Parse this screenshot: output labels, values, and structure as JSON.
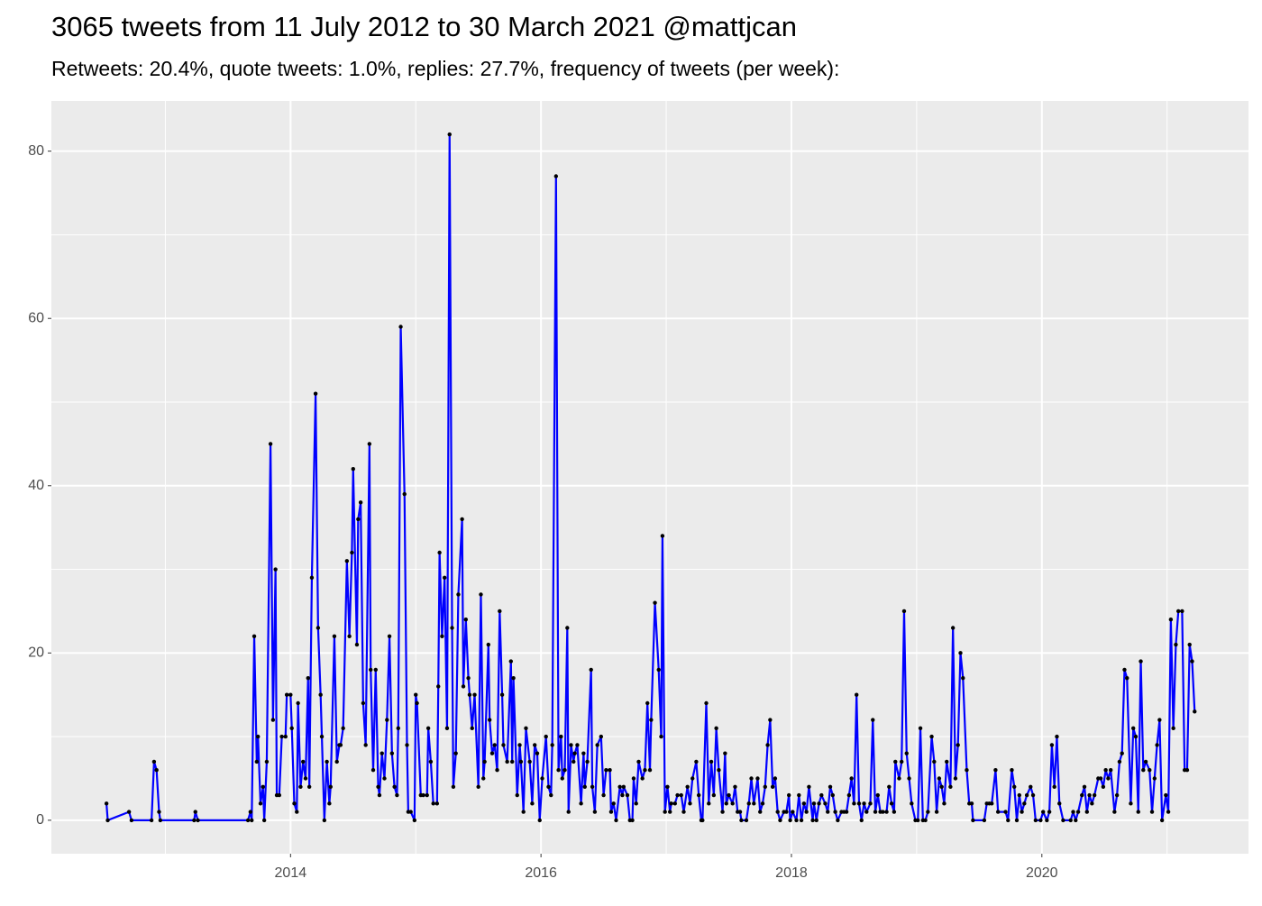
{
  "chart_data": {
    "type": "line",
    "title": "3065 tweets from 11 July 2012 to 30 March 2021 @mattjcan",
    "subtitle": "Retweets: 20.4%, quote tweets: 1.0%, replies: 27.7%, frequency of tweets (per week):",
    "color": "#0000ff",
    "point_color": "#000000",
    "grid": true,
    "xlim": [
      2012.09,
      2021.65
    ],
    "xticks": [
      2014,
      2016,
      2018,
      2020
    ],
    "ylim": [
      -4,
      86
    ],
    "yticks": [
      0,
      20,
      40,
      60,
      80
    ],
    "x": [
      2012.53,
      2012.54,
      2012.71,
      2012.73,
      2012.89,
      2012.91,
      2012.93,
      2012.95,
      2012.96,
      2013.23,
      2013.24,
      2013.26,
      2013.66,
      2013.68,
      2013.69,
      2013.71,
      2013.73,
      2013.74,
      2013.76,
      2013.78,
      2013.79,
      2013.81,
      2013.84,
      2013.86,
      2013.88,
      2013.89,
      2013.91,
      2013.93,
      2013.96,
      2013.97,
      2014.0,
      2014.01,
      2014.03,
      2014.05,
      2014.06,
      2014.08,
      2014.1,
      2014.12,
      2014.14,
      2014.15,
      2014.17,
      2014.2,
      2014.22,
      2014.24,
      2014.25,
      2014.27,
      2014.29,
      2014.31,
      2014.32,
      2014.35,
      2014.37,
      2014.39,
      2014.4,
      2014.42,
      2014.45,
      2014.47,
      2014.49,
      2014.5,
      2014.53,
      2014.54,
      2014.56,
      2014.58,
      2014.6,
      2014.63,
      2014.64,
      2014.66,
      2014.68,
      2014.7,
      2014.71,
      2014.73,
      2014.75,
      2014.77,
      2014.79,
      2014.81,
      2014.83,
      2014.85,
      2014.86,
      2014.88,
      2014.91,
      2014.93,
      2014.94,
      2014.96,
      2014.99,
      2015.0,
      2015.01,
      2015.04,
      2015.06,
      2015.09,
      2015.1,
      2015.12,
      2015.14,
      2015.17,
      2015.18,
      2015.19,
      2015.21,
      2015.23,
      2015.25,
      2015.27,
      2015.29,
      2015.3,
      2015.32,
      2015.34,
      2015.37,
      2015.38,
      2015.4,
      2015.42,
      2015.43,
      2015.45,
      2015.47,
      2015.5,
      2015.52,
      2015.54,
      2015.55,
      2015.58,
      2015.59,
      2015.61,
      2015.63,
      2015.65,
      2015.67,
      2015.69,
      2015.7,
      2015.73,
      2015.76,
      2015.77,
      2015.78,
      2015.81,
      2015.83,
      2015.84,
      2015.86,
      2015.88,
      2015.91,
      2015.93,
      2015.95,
      2015.97,
      2015.99,
      2016.01,
      2016.04,
      2016.06,
      2016.08,
      2016.09,
      2016.12,
      2016.14,
      2016.16,
      2016.17,
      2016.19,
      2016.21,
      2016.22,
      2016.24,
      2016.26,
      2016.27,
      2016.29,
      2016.32,
      2016.34,
      2016.35,
      2016.37,
      2016.4,
      2016.41,
      2016.43,
      2016.45,
      2016.48,
      2016.5,
      2016.52,
      2016.55,
      2016.56,
      2016.58,
      2016.6,
      2016.63,
      2016.65,
      2016.66,
      2016.69,
      2016.71,
      2016.73,
      2016.74,
      2016.76,
      2016.78,
      2016.81,
      2016.83,
      2016.85,
      2016.87,
      2016.88,
      2016.91,
      2016.94,
      2016.96,
      2016.97,
      2016.99,
      2017.01,
      2017.03,
      2017.04,
      2017.07,
      2017.09,
      2017.12,
      2017.14,
      2017.17,
      2017.19,
      2017.21,
      2017.24,
      2017.26,
      2017.28,
      2017.29,
      2017.32,
      2017.34,
      2017.36,
      2017.38,
      2017.4,
      2017.42,
      2017.45,
      2017.47,
      2017.48,
      2017.5,
      2017.53,
      2017.55,
      2017.57,
      2017.59,
      2017.6,
      2017.64,
      2017.66,
      2017.68,
      2017.7,
      2017.73,
      2017.75,
      2017.77,
      2017.79,
      2017.81,
      2017.83,
      2017.85,
      2017.87,
      2017.89,
      2017.91,
      2017.94,
      2017.96,
      2017.98,
      2017.99,
      2018.01,
      2018.04,
      2018.06,
      2018.08,
      2018.1,
      2018.12,
      2018.14,
      2018.17,
      2018.18,
      2018.2,
      2018.22,
      2018.24,
      2018.27,
      2018.29,
      2018.31,
      2018.33,
      2018.35,
      2018.37,
      2018.4,
      2018.42,
      2018.44,
      2018.46,
      2018.48,
      2018.5,
      2018.52,
      2018.54,
      2018.56,
      2018.58,
      2018.6,
      2018.63,
      2018.65,
      2018.67,
      2018.69,
      2018.71,
      2018.73,
      2018.76,
      2018.78,
      2018.8,
      2018.82,
      2018.83,
      2018.86,
      2018.88,
      2018.9,
      2018.92,
      2018.94,
      2018.96,
      2018.99,
      2019.01,
      2019.03,
      2019.05,
      2019.07,
      2019.09,
      2019.12,
      2019.14,
      2019.16,
      2019.18,
      2019.2,
      2019.22,
      2019.24,
      2019.27,
      2019.29,
      2019.31,
      2019.33,
      2019.35,
      2019.37,
      2019.4,
      2019.42,
      2019.44,
      2019.45,
      2019.54,
      2019.56,
      2019.58,
      2019.6,
      2019.63,
      2019.65,
      2019.71,
      2019.73,
      2019.76,
      2019.78,
      2019.8,
      2019.82,
      2019.84,
      2019.86,
      2019.88,
      2019.91,
      2019.93,
      2019.95,
      2019.99,
      2020.01,
      2020.04,
      2020.06,
      2020.08,
      2020.1,
      2020.12,
      2020.14,
      2020.17,
      2020.23,
      2020.25,
      2020.27,
      2020.29,
      2020.32,
      2020.34,
      2020.36,
      2020.38,
      2020.4,
      2020.42,
      2020.45,
      2020.47,
      2020.49,
      2020.51,
      2020.53,
      2020.55,
      2020.58,
      2020.6,
      2020.62,
      2020.64,
      2020.66,
      2020.68,
      2020.71,
      2020.73,
      2020.75,
      2020.77,
      2020.79,
      2020.81,
      2020.83,
      2020.86,
      2020.88,
      2020.9,
      2020.92,
      2020.94,
      2020.96,
      2020.99,
      2021.01,
      2021.03,
      2021.05,
      2021.07,
      2021.09,
      2021.12,
      2021.14,
      2021.16,
      2021.18,
      2021.2,
      2021.22
    ],
    "values": [
      2,
      0,
      1,
      0,
      0,
      7,
      6,
      1,
      0,
      0,
      1,
      0,
      0,
      1,
      0,
      22,
      7,
      10,
      2,
      4,
      0,
      7,
      45,
      12,
      30,
      3,
      3,
      10,
      10,
      15,
      15,
      11,
      2,
      1,
      14,
      4,
      7,
      5,
      17,
      4,
      29,
      51,
      23,
      15,
      10,
      0,
      7,
      2,
      4,
      22,
      7,
      9,
      9,
      11,
      31,
      22,
      32,
      42,
      21,
      36,
      38,
      14,
      9,
      45,
      18,
      6,
      18,
      4,
      3,
      8,
      5,
      12,
      22,
      8,
      4,
      3,
      11,
      59,
      39,
      9,
      1,
      1,
      0,
      15,
      14,
      3,
      3,
      3,
      11,
      7,
      2,
      2,
      16,
      32,
      22,
      29,
      11,
      82,
      23,
      4,
      8,
      27,
      36,
      16,
      24,
      17,
      15,
      11,
      15,
      4,
      27,
      5,
      7,
      21,
      12,
      8,
      9,
      6,
      25,
      15,
      9,
      7,
      19,
      7,
      17,
      3,
      9,
      7,
      1,
      11,
      7,
      2,
      9,
      8,
      0,
      5,
      10,
      4,
      3,
      9,
      77,
      6,
      10,
      5,
      6,
      23,
      1,
      9,
      7,
      8,
      9,
      2,
      8,
      4,
      7,
      18,
      4,
      1,
      9,
      10,
      3,
      6,
      6,
      1,
      2,
      0,
      4,
      3,
      4,
      3,
      0,
      0,
      5,
      2,
      7,
      5,
      6,
      14,
      6,
      12,
      26,
      18,
      10,
      34,
      1,
      4,
      1,
      2,
      2,
      3,
      3,
      1,
      4,
      2,
      5,
      7,
      3,
      0,
      0,
      14,
      2,
      7,
      3,
      11,
      6,
      1,
      8,
      2,
      3,
      2,
      4,
      1,
      1,
      0,
      0,
      2,
      5,
      2,
      5,
      1,
      2,
      4,
      9,
      12,
      4,
      5,
      1,
      0,
      1,
      1,
      3,
      0,
      1,
      0,
      3,
      0,
      2,
      1,
      4,
      0,
      2,
      0,
      2,
      3,
      2,
      1,
      4,
      3,
      1,
      0,
      1,
      1,
      1,
      3,
      5,
      2,
      15,
      2,
      0,
      2,
      1,
      2,
      12,
      1,
      3,
      1,
      1,
      1,
      4,
      2,
      1,
      7,
      5,
      7,
      25,
      8,
      5,
      2,
      0,
      0,
      11,
      0,
      0,
      1,
      10,
      7,
      1,
      5,
      4,
      2,
      7,
      4,
      23,
      5,
      9,
      20,
      17,
      6,
      2,
      2,
      0,
      0,
      2,
      2,
      2,
      6,
      1,
      1,
      0,
      6,
      4,
      0,
      3,
      1,
      2,
      3,
      4,
      3,
      0,
      0,
      1,
      0,
      1,
      9,
      4,
      10,
      2,
      0,
      0,
      1,
      0,
      1,
      3,
      4,
      1,
      3,
      2,
      3,
      5,
      5,
      4,
      6,
      5,
      6,
      1,
      3,
      7,
      8,
      18,
      17,
      2,
      11,
      10,
      1,
      19,
      6,
      7,
      6,
      1,
      5,
      9,
      12,
      0,
      3,
      1,
      24,
      11,
      21,
      25,
      25,
      6,
      6,
      21,
      19,
      13
    ]
  }
}
